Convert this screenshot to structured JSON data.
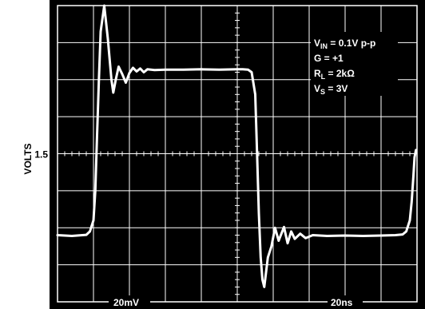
{
  "chart_data": {
    "type": "line",
    "ylabel": "VOLTS",
    "y_tick_labels": [
      {
        "value": 1.5,
        "text": "1.5"
      }
    ],
    "x_scale_label": "20ns",
    "y_scale_label": "20mV",
    "grid": true,
    "xlim": [
      0,
      10
    ],
    "ylim": [
      -4,
      4
    ],
    "legend": {
      "placement": "top-right",
      "lines": [
        {
          "main": "V",
          "sub": "IN",
          "rest": " = 0.1V p-p"
        },
        {
          "main": "G = +1",
          "sub": "",
          "rest": ""
        },
        {
          "main": "R",
          "sub": "L",
          "rest": " = 2kΩ"
        },
        {
          "main": "V",
          "sub": "S",
          "rest": " = 3V"
        }
      ]
    },
    "series": [
      {
        "color": "#ffffff",
        "x": [
          0.0,
          0.4,
          0.8,
          0.9,
          1.0,
          1.05,
          1.1,
          1.15,
          1.2,
          1.3,
          1.4,
          1.5,
          1.55,
          1.62,
          1.7,
          1.8,
          1.9,
          2.0,
          2.1,
          2.2,
          2.3,
          2.4,
          2.5,
          2.7,
          3.0,
          3.5,
          4.0,
          4.5,
          5.0,
          5.15,
          5.3,
          5.4,
          5.5,
          5.55,
          5.6,
          5.65,
          5.7,
          5.75,
          5.85,
          5.95,
          6.05,
          6.15,
          6.3,
          6.4,
          6.5,
          6.6,
          6.75,
          6.9,
          7.1,
          7.5,
          8.0,
          8.5,
          9.0,
          9.4,
          9.6,
          9.7,
          9.8,
          9.85,
          9.9,
          9.93,
          9.97
        ],
        "y": [
          -2.2,
          -2.22,
          -2.19,
          -2.1,
          -1.8,
          -1.0,
          0.5,
          2.0,
          3.3,
          4.0,
          3.1,
          2.0,
          1.65,
          2.0,
          2.35,
          2.15,
          1.92,
          2.18,
          2.32,
          2.22,
          2.3,
          2.2,
          2.28,
          2.26,
          2.27,
          2.27,
          2.28,
          2.27,
          2.28,
          2.28,
          2.27,
          2.2,
          1.6,
          0.0,
          -1.6,
          -2.8,
          -3.4,
          -3.6,
          -2.8,
          -2.5,
          -2.0,
          -2.35,
          -1.98,
          -2.42,
          -2.1,
          -2.3,
          -2.16,
          -2.28,
          -2.2,
          -2.22,
          -2.21,
          -2.22,
          -2.21,
          -2.2,
          -2.18,
          -2.1,
          -1.8,
          -1.3,
          -0.6,
          -0.1,
          0.1
        ]
      }
    ]
  }
}
